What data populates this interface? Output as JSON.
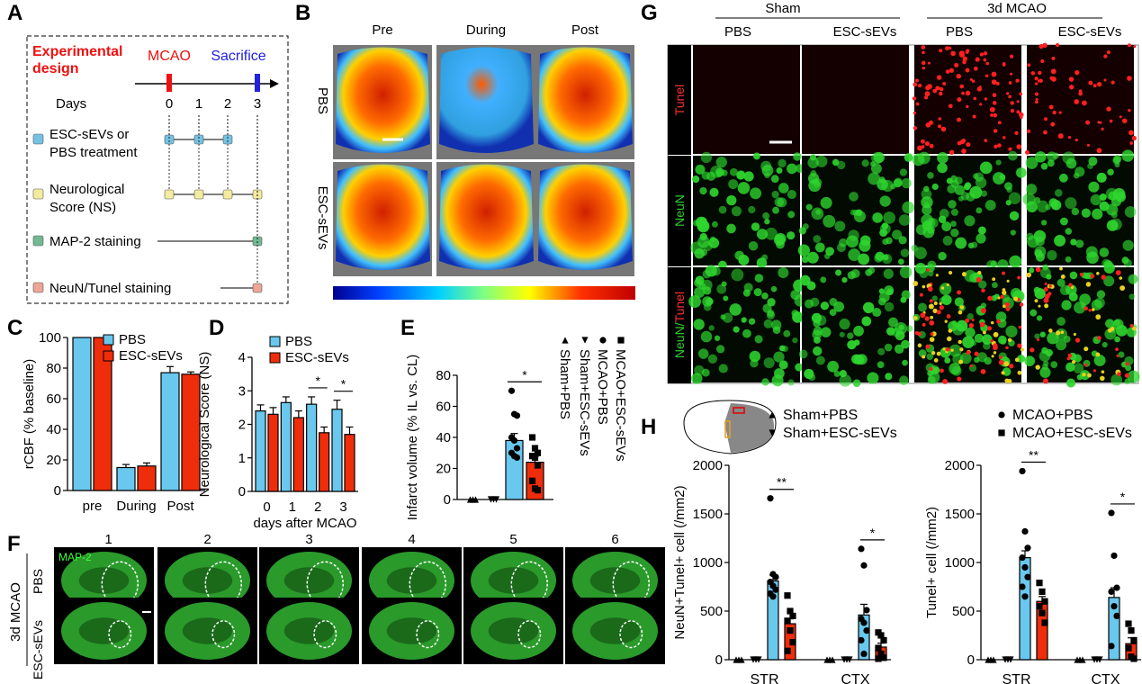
{
  "panel_letters": {
    "A": "A",
    "B": "B",
    "C": "C",
    "D": "D",
    "E": "E",
    "F": "F",
    "G": "G",
    "H": "H"
  },
  "colors": {
    "pbs": "#6ac8ee",
    "esc": "#f02d0a",
    "mcao": "#ee1111",
    "sacrifice": "#2020dd"
  },
  "panelA": {
    "title": "Experimental design",
    "mcao": "MCAO",
    "sacrifice": "Sacrifice",
    "days_label": "Days",
    "days": [
      "0",
      "1",
      "2",
      "3"
    ],
    "rows": [
      {
        "line1": "ESC-sEVs or",
        "line2": "PBS treatment",
        "color": "#74c2e3"
      },
      {
        "line1": "Neurological",
        "line2": "Score (NS)",
        "color": "#f4eb9e"
      },
      {
        "line1": "MAP-2 staining",
        "line2": "",
        "color": "#72b995"
      },
      {
        "line1": "NeuN/Tunel staining",
        "line2": "",
        "color": "#eda596"
      }
    ]
  },
  "panelB": {
    "columns": [
      "Pre",
      "During",
      "Post"
    ],
    "rows": [
      "PBS",
      "ESC-sEVs"
    ]
  },
  "panelF": {
    "columns": [
      "1",
      "2",
      "3",
      "4",
      "5",
      "6"
    ],
    "rows": [
      "PBS",
      "ESC-sEVs"
    ],
    "group_label": "3d MCAO",
    "stain": "MAP-2"
  },
  "panelG": {
    "groups": [
      "Sham",
      "3d MCAO"
    ],
    "columns": [
      "PBS",
      "ESC-sEVs",
      "PBS",
      "ESC-sEVs"
    ],
    "rows": [
      "Tunel",
      "NeuN",
      "NeuN/",
      "Tunel"
    ]
  },
  "panelH": {
    "legend": [
      "Sham+PBS",
      "Sham+ESC-sEVs",
      "MCAO+PBS",
      "MCAO+ESC-sEVs"
    ]
  },
  "chart_data": [
    {
      "id": "C",
      "type": "bar",
      "title": "",
      "xlabel": "",
      "ylabel": "rCBF (% baseline)",
      "ylim": [
        0,
        100
      ],
      "yticks": [
        "0",
        "20",
        "40",
        "60",
        "80",
        "100"
      ],
      "categories": [
        "pre",
        "During",
        "Post"
      ],
      "legend": [
        "PBS",
        "ESC-sEVs"
      ],
      "series": [
        {
          "name": "PBS",
          "values": [
            100,
            15,
            77
          ],
          "errors": [
            0,
            2,
            4
          ]
        },
        {
          "name": "ESC-sEVs",
          "values": [
            100,
            16,
            76
          ],
          "errors": [
            0,
            2,
            1.5
          ]
        }
      ]
    },
    {
      "id": "D",
      "type": "bar",
      "xlabel": "days after MCAO",
      "ylabel": "Neurological Score (NS)",
      "ylim": [
        0,
        4
      ],
      "yticks": [
        "0",
        "1",
        "2",
        "3",
        "4"
      ],
      "categories": [
        "0",
        "1",
        "2",
        "3"
      ],
      "legend": [
        "PBS",
        "ESC-sEVs"
      ],
      "series": [
        {
          "name": "PBS",
          "values": [
            2.4,
            2.65,
            2.6,
            2.45
          ],
          "errors": [
            0.18,
            0.17,
            0.22,
            0.27
          ]
        },
        {
          "name": "ESC-sEVs",
          "values": [
            2.3,
            2.2,
            1.75,
            1.7
          ],
          "errors": [
            0.2,
            0.2,
            0.17,
            0.22
          ]
        }
      ],
      "significance": [
        {
          "category": "2",
          "label": "*"
        },
        {
          "category": "3",
          "label": "*"
        }
      ]
    },
    {
      "id": "E",
      "type": "bar",
      "ylabel": "Infarct volume (% IL vs. CL)",
      "ylim": [
        0,
        80
      ],
      "yticks": [
        "0",
        "20",
        "40",
        "60",
        "80"
      ],
      "categories": [
        "Sham+PBS",
        "Sham+ESC-sEVs",
        "MCAO+PBS",
        "MCAO+ESC-sEVs"
      ],
      "legend": [
        "Sham+PBS",
        "Sham+ESC-sEVs",
        "MCAO+PBS",
        "MCAO+ESC-sEVs"
      ],
      "values": [
        0,
        0,
        38,
        24
      ],
      "errors": [
        0,
        0,
        4.5,
        3.5
      ],
      "points": [
        [
          0,
          0,
          0
        ],
        [
          0,
          0,
          0
        ],
        [
          70,
          55,
          54,
          40,
          38,
          33,
          30,
          28,
          27
        ],
        [
          40,
          33,
          30,
          28,
          27,
          22,
          12,
          7,
          6
        ]
      ],
      "significance": [
        {
          "between": [
            "MCAO+PBS",
            "MCAO+ESC-sEVs"
          ],
          "label": "*"
        }
      ]
    },
    {
      "id": "H1",
      "type": "bar",
      "ylabel": "NeuN+Tunel+ cell (/mm2)",
      "ylim": [
        0,
        2000
      ],
      "yticks": [
        "0",
        "500",
        "1000",
        "1500",
        "2000"
      ],
      "categories": [
        "STR",
        "CTX"
      ],
      "series": [
        {
          "name": "Sham+PBS",
          "values": [
            0,
            0
          ],
          "errors": [
            0,
            0
          ]
        },
        {
          "name": "Sham+ESC-sEVs",
          "values": [
            0,
            0
          ],
          "errors": [
            0,
            0
          ]
        },
        {
          "name": "MCAO+PBS",
          "values": [
            810,
            460
          ],
          "errors": [
            60,
            110
          ]
        },
        {
          "name": "MCAO+ESC-sEVs",
          "values": [
            370,
            130
          ],
          "errors": [
            50,
            40
          ]
        }
      ],
      "points": [
        [
          [
            0,
            0,
            0
          ],
          [
            0,
            0,
            0
          ],
          [
            1660,
            880,
            850,
            800,
            760,
            720,
            680,
            650
          ],
          [
            660,
            500,
            450,
            400,
            300,
            180,
            90
          ]
        ],
        [
          [
            0,
            0,
            0
          ],
          [
            0,
            0,
            0
          ],
          [
            1140,
            970,
            510,
            420,
            380,
            300,
            200,
            60
          ],
          [
            280,
            250,
            200,
            120,
            60,
            20,
            10
          ]
        ]
      ],
      "significance": [
        {
          "category": "STR",
          "label": "**"
        },
        {
          "category": "CTX",
          "label": "*"
        }
      ]
    },
    {
      "id": "H2",
      "type": "bar",
      "ylabel": "Tunel+ cell (/mm2)",
      "ylim": [
        0,
        2000
      ],
      "yticks": [
        "0",
        "500",
        "1000",
        "1500",
        "2000"
      ],
      "categories": [
        "STR",
        "CTX"
      ],
      "series": [
        {
          "name": "Sham+PBS",
          "values": [
            0,
            0
          ],
          "errors": [
            0,
            0
          ]
        },
        {
          "name": "Sham+ESC-sEVs",
          "values": [
            0,
            0
          ],
          "errors": [
            0,
            0
          ]
        },
        {
          "name": "MCAO+PBS",
          "values": [
            1050,
            640
          ],
          "errors": [
            70,
            100
          ]
        },
        {
          "name": "MCAO+ESC-sEVs",
          "values": [
            600,
            165
          ],
          "errors": [
            50,
            60
          ]
        }
      ],
      "points": [
        [
          [
            0,
            0,
            0
          ],
          [
            0,
            0,
            0
          ],
          [
            1940,
            1320,
            1150,
            1050,
            950,
            850,
            750,
            650
          ],
          [
            790,
            700,
            600,
            550,
            480,
            380
          ]
        ],
        [
          [
            0,
            0,
            0
          ],
          [
            0,
            0,
            0
          ],
          [
            1510,
            1070,
            740,
            700,
            550,
            450,
            140
          ],
          [
            370,
            300,
            200,
            120,
            30,
            10
          ]
        ]
      ],
      "significance": [
        {
          "category": "STR",
          "label": "**"
        },
        {
          "category": "CTX",
          "label": "*"
        }
      ]
    }
  ]
}
